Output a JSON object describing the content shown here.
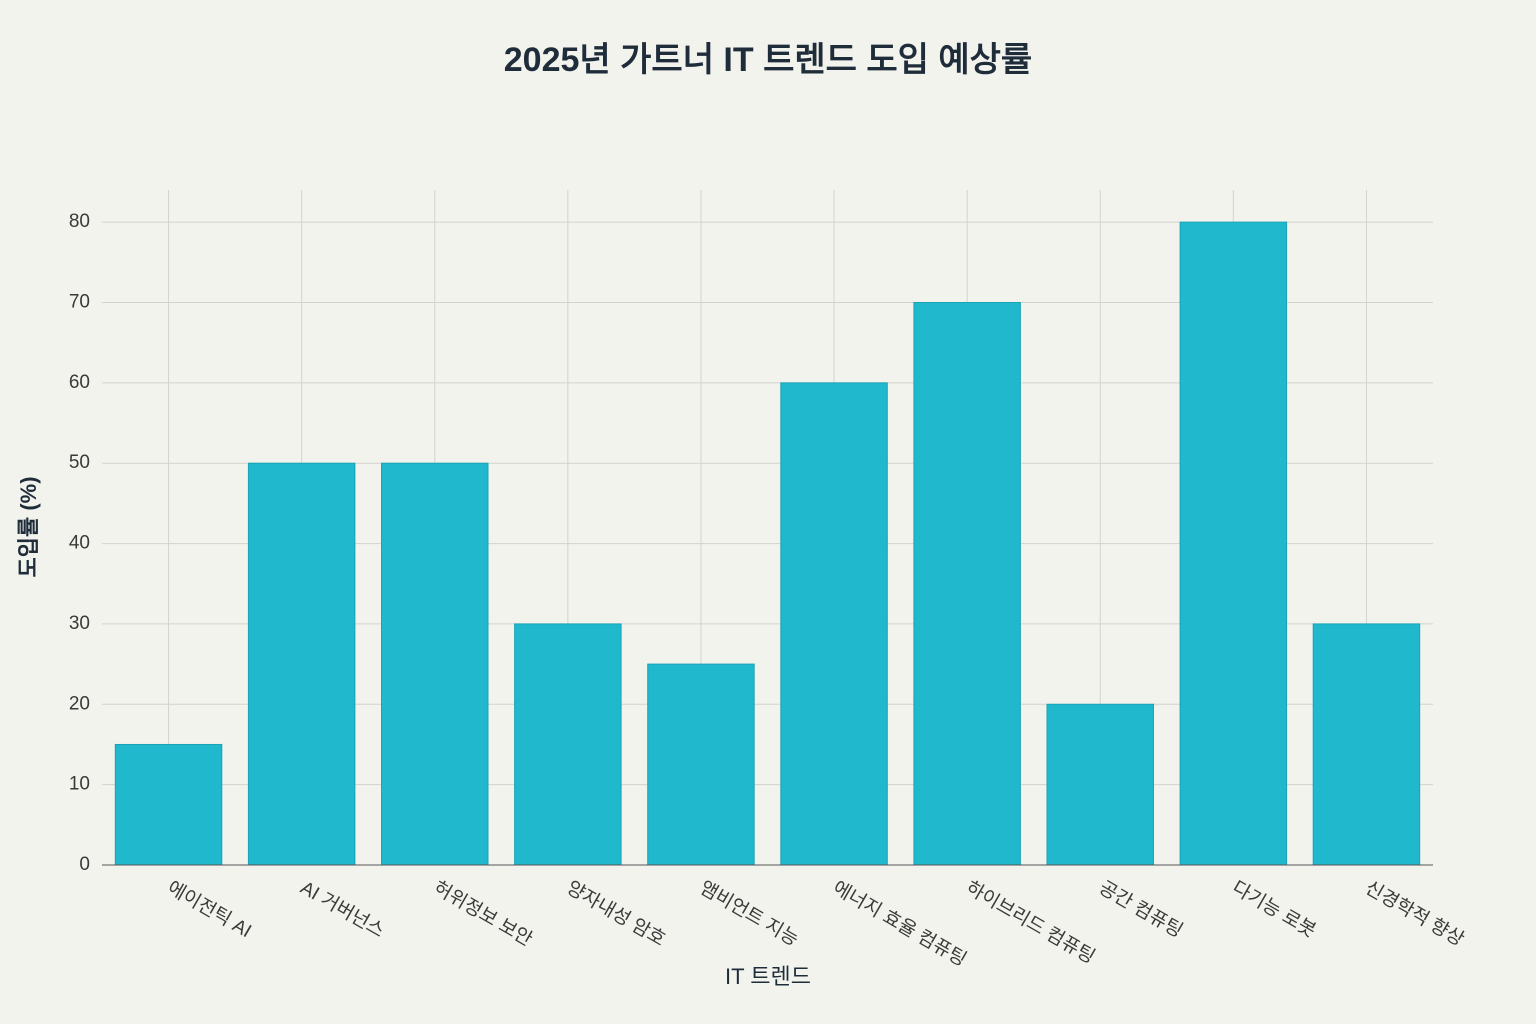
{
  "chart_data": {
    "type": "bar",
    "title": "2025년 가트너 IT 트렌드 도입 예상률",
    "x_label": "IT 트렌드",
    "y_label": "도입률 (%)",
    "categories": [
      "에이전틱 AI",
      "AI 거버넌스",
      "허위정보 보안",
      "양자내성 암호",
      "앰비언트 지능",
      "에너지 효율 컴퓨팅",
      "하이브리드 컴퓨팅",
      "공간 컴퓨팅",
      "다기능 로봇",
      "신경학적 향상"
    ],
    "values": [
      15,
      50,
      50,
      30,
      25,
      60,
      70,
      20,
      80,
      30
    ],
    "color": "#20b8cc",
    "ylim": [
      0,
      84
    ],
    "yticks": [
      0,
      10,
      20,
      30,
      40,
      50,
      60,
      70,
      80
    ],
    "grid": true
  }
}
